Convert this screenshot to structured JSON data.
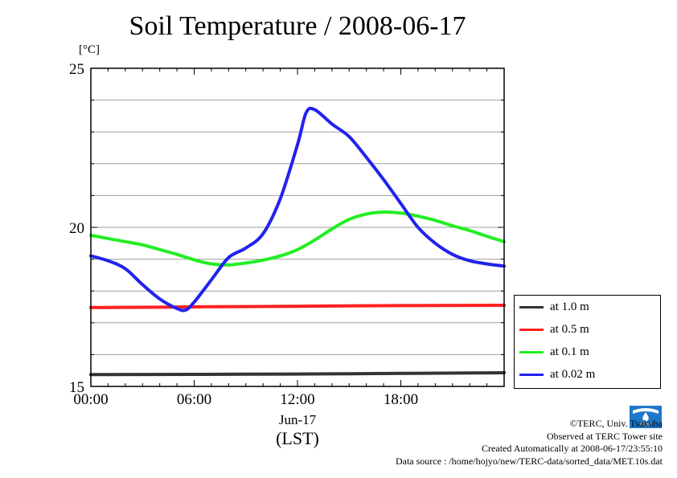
{
  "title": "Soil Temperature / 2008-06-17",
  "unit": "[°C]",
  "xlabel": {
    "date": "Jun-17",
    "timezone": "(LST)"
  },
  "legend": [
    {
      "label": "at 1.0 m",
      "color": "#333333"
    },
    {
      "label": "at 0.5 m",
      "color": "#ff2020"
    },
    {
      "label": "at 0.1 m",
      "color": "#22ee22"
    },
    {
      "label": "at 0.02 m",
      "color": "#2222ee"
    }
  ],
  "credits": {
    "copyright": "©TERC, Univ. Tsukuba",
    "site": "Observed at TERC Tower site",
    "created": "Created Automatically at 2008-06-17/23:55:10",
    "source": "Data source : /home/hojyo/new/TERC-data/sorted_data/MET.10s.dat"
  },
  "logo_text": "TERC",
  "chart_data": {
    "type": "line",
    "ylim": [
      15,
      25
    ],
    "xlim": [
      0,
      24
    ],
    "yticks": [
      15,
      20,
      25
    ],
    "ytick_labels": [
      "15",
      "20",
      "25"
    ],
    "xticks": [
      0,
      6,
      12,
      18
    ],
    "xtick_labels": [
      "00:00",
      "06:00",
      "12:00",
      "18:00"
    ],
    "grid": true,
    "legend_position": "right",
    "series": [
      {
        "name": "at 1.0 m",
        "color": "#333333",
        "x": [
          0,
          6,
          12,
          18,
          24
        ],
        "y": [
          15.37,
          15.38,
          15.39,
          15.41,
          15.43
        ]
      },
      {
        "name": "at 0.5 m",
        "color": "#ff2020",
        "x": [
          0,
          6,
          12,
          18,
          24
        ],
        "y": [
          17.48,
          17.5,
          17.52,
          17.54,
          17.55
        ]
      },
      {
        "name": "at 0.1 m",
        "color": "#22ee22",
        "x": [
          0,
          1,
          2,
          3,
          4,
          5,
          6,
          7,
          8,
          9,
          10,
          11,
          12,
          13,
          14,
          15,
          16,
          17,
          18,
          19,
          20,
          21,
          22,
          23,
          24
        ],
        "y": [
          19.75,
          19.65,
          19.55,
          19.45,
          19.3,
          19.15,
          18.98,
          18.85,
          18.82,
          18.88,
          18.97,
          19.1,
          19.3,
          19.6,
          19.95,
          20.25,
          20.42,
          20.48,
          20.45,
          20.35,
          20.22,
          20.05,
          19.9,
          19.72,
          19.55
        ]
      },
      {
        "name": "at 0.02 m",
        "color": "#2222ee",
        "x": [
          0,
          1,
          2,
          3,
          4,
          5,
          5.5,
          6,
          7,
          8,
          9,
          10,
          11,
          12,
          12.5,
          13,
          14,
          15,
          16,
          17,
          18,
          19,
          20,
          21,
          22,
          23,
          24
        ],
        "y": [
          19.1,
          18.95,
          18.7,
          18.2,
          17.75,
          17.45,
          17.4,
          17.65,
          18.35,
          19.05,
          19.35,
          19.8,
          20.9,
          22.6,
          23.6,
          23.7,
          23.25,
          22.85,
          22.2,
          21.5,
          20.75,
          20.0,
          19.5,
          19.15,
          18.95,
          18.85,
          18.78
        ]
      }
    ]
  }
}
